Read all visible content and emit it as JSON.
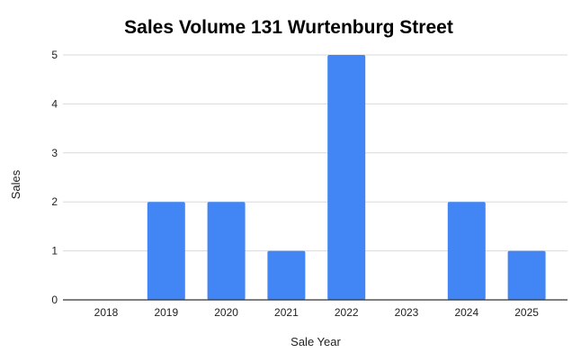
{
  "chart_data": {
    "type": "bar",
    "title": "Sales Volume 131 Wurtenburg Street",
    "xlabel": "Sale Year",
    "ylabel": "Sales",
    "categories": [
      "2018",
      "2019",
      "2020",
      "2021",
      "2022",
      "2023",
      "2024",
      "2025"
    ],
    "values": [
      0,
      2,
      2,
      1,
      5,
      0,
      2,
      1
    ],
    "ylim": [
      0,
      5
    ],
    "yticks": [
      "0",
      "1",
      "2",
      "3",
      "4",
      "5"
    ],
    "grid": true,
    "legend": "none",
    "bar_color": "#4285f4"
  }
}
